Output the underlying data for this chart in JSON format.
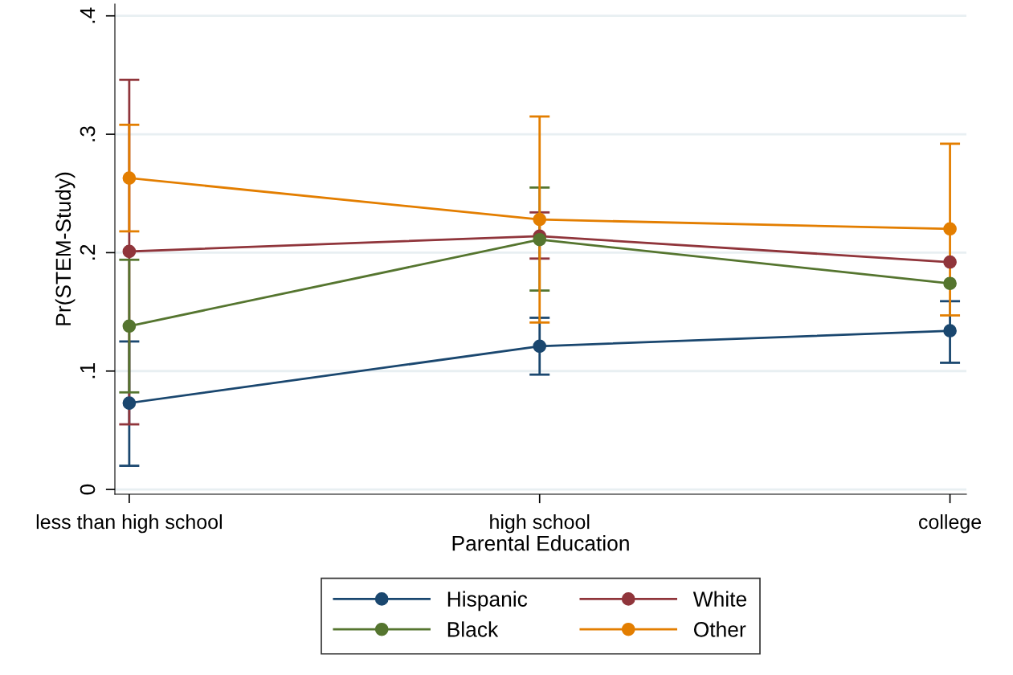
{
  "chart_data": {
    "type": "line",
    "xlabel": "Parental Education",
    "ylabel": "Pr(STEM-Study)",
    "categories": [
      "less than high school",
      "high school",
      "college"
    ],
    "series": [
      {
        "name": "Hispanic",
        "color": "#1a476f",
        "values": [
          0.073,
          0.121,
          0.134
        ],
        "errors": [
          [
            0.02,
            0.125
          ],
          [
            0.097,
            0.145
          ],
          [
            0.107,
            0.159
          ]
        ]
      },
      {
        "name": "White",
        "color": "#90353b",
        "values": [
          0.201,
          0.214,
          0.192
        ],
        "errors": [
          [
            0.055,
            0.346
          ],
          [
            0.195,
            0.234
          ],
          null
        ]
      },
      {
        "name": "Black",
        "color": "#55752f",
        "values": [
          0.138,
          0.211,
          0.174
        ],
        "errors": [
          [
            0.082,
            0.194
          ],
          [
            0.168,
            0.255
          ],
          null
        ]
      },
      {
        "name": "Other",
        "color": "#e37e00",
        "values": [
          0.263,
          0.228,
          0.22
        ],
        "errors": [
          [
            0.218,
            0.308
          ],
          [
            0.141,
            0.315
          ],
          [
            0.147,
            0.292
          ]
        ]
      }
    ],
    "ylim": [
      -0.004,
      0.41
    ],
    "yticks": [
      {
        "value": 0,
        "label": "0"
      },
      {
        "value": 0.1,
        "label": ".1"
      },
      {
        "value": 0.2,
        "label": ".2"
      },
      {
        "value": 0.3,
        "label": ".3"
      },
      {
        "value": 0.4,
        "label": ".4"
      }
    ],
    "grid": "y",
    "legend": "bottom",
    "marker": "circle",
    "line_style": "solid"
  }
}
